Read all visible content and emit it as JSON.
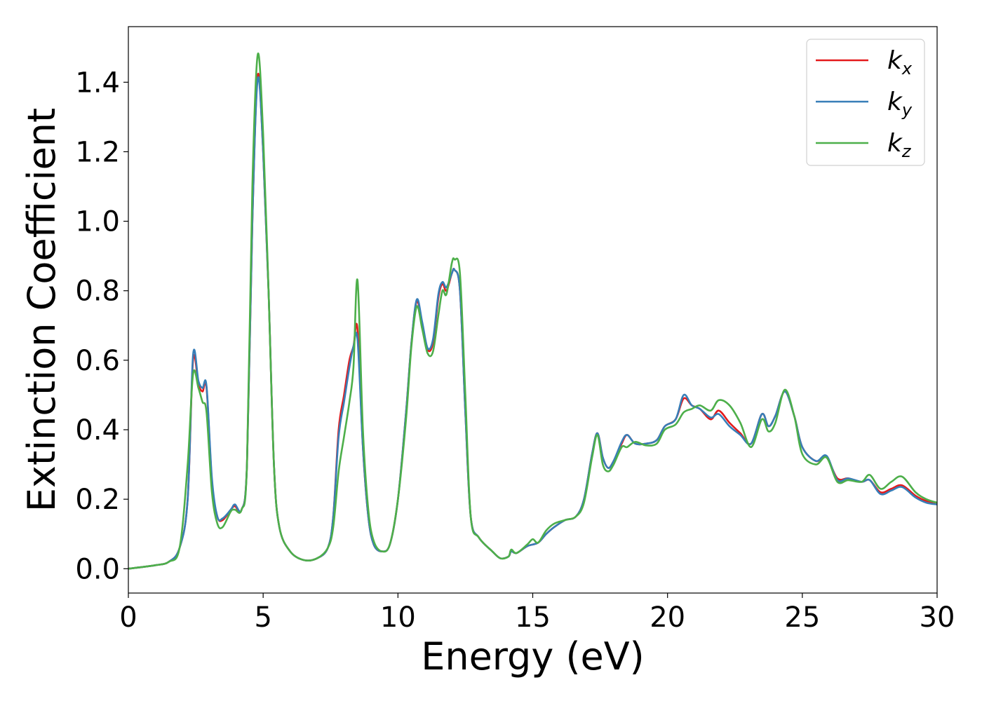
{
  "chart_data": {
    "type": "line",
    "title": "",
    "xlabel": "Energy (eV)",
    "ylabel": "Extinction Coefficient",
    "xlim": [
      0,
      30
    ],
    "ylim": [
      -0.07,
      1.56
    ],
    "xticks": [
      0,
      5,
      10,
      15,
      20,
      25,
      30
    ],
    "xtick_labels": [
      "0",
      "5",
      "10",
      "15",
      "20",
      "25",
      "30"
    ],
    "yticks": [
      0.0,
      0.2,
      0.4,
      0.6,
      0.8,
      1.0,
      1.2,
      1.4
    ],
    "ytick_labels": [
      "0.0",
      "0.2",
      "0.4",
      "0.6",
      "0.8",
      "1.0",
      "1.2",
      "1.4"
    ],
    "grid": false,
    "legend_position": "top-right",
    "series": [
      {
        "name": "k",
        "subscript": "x",
        "color": "#e41a1c",
        "points": [
          [
            0,
            0.0
          ],
          [
            1,
            0.01
          ],
          [
            1.5,
            0.02
          ],
          [
            1.9,
            0.06
          ],
          [
            2.2,
            0.2
          ],
          [
            2.4,
            0.6
          ],
          [
            2.6,
            0.53
          ],
          [
            2.75,
            0.51
          ],
          [
            2.9,
            0.52
          ],
          [
            3.1,
            0.25
          ],
          [
            3.3,
            0.15
          ],
          [
            3.5,
            0.14
          ],
          [
            3.8,
            0.17
          ],
          [
            3.95,
            0.18
          ],
          [
            4.2,
            0.17
          ],
          [
            4.4,
            0.3
          ],
          [
            4.6,
            1.0
          ],
          [
            4.8,
            1.42
          ],
          [
            5.0,
            1.2
          ],
          [
            5.2,
            0.8
          ],
          [
            5.4,
            0.3
          ],
          [
            5.6,
            0.12
          ],
          [
            6.0,
            0.05
          ],
          [
            6.5,
            0.025
          ],
          [
            7.0,
            0.03
          ],
          [
            7.4,
            0.06
          ],
          [
            7.6,
            0.15
          ],
          [
            7.8,
            0.4
          ],
          [
            8.0,
            0.5
          ],
          [
            8.2,
            0.6
          ],
          [
            8.35,
            0.64
          ],
          [
            8.5,
            0.69
          ],
          [
            8.7,
            0.35
          ],
          [
            8.9,
            0.15
          ],
          [
            9.1,
            0.07
          ],
          [
            9.4,
            0.05
          ],
          [
            9.7,
            0.07
          ],
          [
            10.0,
            0.2
          ],
          [
            10.3,
            0.45
          ],
          [
            10.5,
            0.65
          ],
          [
            10.7,
            0.77
          ],
          [
            10.9,
            0.7
          ],
          [
            11.1,
            0.63
          ],
          [
            11.3,
            0.65
          ],
          [
            11.5,
            0.78
          ],
          [
            11.65,
            0.82
          ],
          [
            11.8,
            0.8
          ],
          [
            12.0,
            0.85
          ],
          [
            12.1,
            0.86
          ],
          [
            12.3,
            0.8
          ],
          [
            12.5,
            0.45
          ],
          [
            12.7,
            0.15
          ],
          [
            13.0,
            0.09
          ],
          [
            13.5,
            0.05
          ],
          [
            13.8,
            0.03
          ],
          [
            14.1,
            0.035
          ],
          [
            14.2,
            0.05
          ],
          [
            14.4,
            0.045
          ],
          [
            14.8,
            0.065
          ],
          [
            15.2,
            0.075
          ],
          [
            15.5,
            0.1
          ],
          [
            15.8,
            0.12
          ],
          [
            16.2,
            0.14
          ],
          [
            16.6,
            0.15
          ],
          [
            16.9,
            0.2
          ],
          [
            17.2,
            0.33
          ],
          [
            17.4,
            0.39
          ],
          [
            17.6,
            0.32
          ],
          [
            17.8,
            0.29
          ],
          [
            18.0,
            0.31
          ],
          [
            18.3,
            0.36
          ],
          [
            18.5,
            0.385
          ],
          [
            18.8,
            0.36
          ],
          [
            19.2,
            0.36
          ],
          [
            19.6,
            0.37
          ],
          [
            19.9,
            0.41
          ],
          [
            20.3,
            0.43
          ],
          [
            20.6,
            0.49
          ],
          [
            20.9,
            0.47
          ],
          [
            21.2,
            0.46
          ],
          [
            21.6,
            0.43
          ],
          [
            21.9,
            0.455
          ],
          [
            22.3,
            0.42
          ],
          [
            22.7,
            0.39
          ],
          [
            23.1,
            0.36
          ],
          [
            23.5,
            0.445
          ],
          [
            23.75,
            0.41
          ],
          [
            24.0,
            0.44
          ],
          [
            24.35,
            0.51
          ],
          [
            24.7,
            0.44
          ],
          [
            25.0,
            0.35
          ],
          [
            25.5,
            0.31
          ],
          [
            25.9,
            0.32
          ],
          [
            26.3,
            0.26
          ],
          [
            26.7,
            0.26
          ],
          [
            27.2,
            0.25
          ],
          [
            27.5,
            0.255
          ],
          [
            27.9,
            0.22
          ],
          [
            28.3,
            0.23
          ],
          [
            28.7,
            0.24
          ],
          [
            29.2,
            0.21
          ],
          [
            29.6,
            0.195
          ],
          [
            30,
            0.19
          ]
        ]
      },
      {
        "name": "k",
        "subscript": "y",
        "color": "#377eb8",
        "points": [
          [
            0,
            0.0
          ],
          [
            1,
            0.01
          ],
          [
            1.5,
            0.02
          ],
          [
            1.9,
            0.06
          ],
          [
            2.2,
            0.2
          ],
          [
            2.4,
            0.615
          ],
          [
            2.6,
            0.54
          ],
          [
            2.75,
            0.52
          ],
          [
            2.9,
            0.525
          ],
          [
            3.1,
            0.26
          ],
          [
            3.3,
            0.15
          ],
          [
            3.5,
            0.145
          ],
          [
            3.8,
            0.17
          ],
          [
            3.95,
            0.185
          ],
          [
            4.2,
            0.17
          ],
          [
            4.4,
            0.3
          ],
          [
            4.6,
            1.0
          ],
          [
            4.8,
            1.41
          ],
          [
            5.0,
            1.2
          ],
          [
            5.2,
            0.8
          ],
          [
            5.4,
            0.3
          ],
          [
            5.6,
            0.12
          ],
          [
            6.0,
            0.05
          ],
          [
            6.5,
            0.025
          ],
          [
            7.0,
            0.03
          ],
          [
            7.4,
            0.06
          ],
          [
            7.6,
            0.15
          ],
          [
            7.8,
            0.38
          ],
          [
            8.0,
            0.48
          ],
          [
            8.2,
            0.58
          ],
          [
            8.35,
            0.64
          ],
          [
            8.5,
            0.66
          ],
          [
            8.7,
            0.35
          ],
          [
            8.9,
            0.15
          ],
          [
            9.1,
            0.07
          ],
          [
            9.4,
            0.05
          ],
          [
            9.7,
            0.07
          ],
          [
            10.0,
            0.2
          ],
          [
            10.3,
            0.45
          ],
          [
            10.5,
            0.65
          ],
          [
            10.7,
            0.775
          ],
          [
            10.9,
            0.71
          ],
          [
            11.1,
            0.635
          ],
          [
            11.3,
            0.66
          ],
          [
            11.5,
            0.79
          ],
          [
            11.65,
            0.825
          ],
          [
            11.8,
            0.81
          ],
          [
            12.0,
            0.85
          ],
          [
            12.1,
            0.86
          ],
          [
            12.3,
            0.8
          ],
          [
            12.5,
            0.45
          ],
          [
            12.7,
            0.15
          ],
          [
            13.0,
            0.09
          ],
          [
            13.5,
            0.05
          ],
          [
            13.8,
            0.03
          ],
          [
            14.1,
            0.035
          ],
          [
            14.2,
            0.05
          ],
          [
            14.4,
            0.045
          ],
          [
            14.8,
            0.065
          ],
          [
            15.2,
            0.075
          ],
          [
            15.5,
            0.1
          ],
          [
            15.8,
            0.12
          ],
          [
            16.2,
            0.14
          ],
          [
            16.6,
            0.15
          ],
          [
            16.9,
            0.2
          ],
          [
            17.2,
            0.33
          ],
          [
            17.4,
            0.39
          ],
          [
            17.6,
            0.32
          ],
          [
            17.8,
            0.29
          ],
          [
            18.0,
            0.31
          ],
          [
            18.3,
            0.365
          ],
          [
            18.5,
            0.385
          ],
          [
            18.8,
            0.36
          ],
          [
            19.2,
            0.36
          ],
          [
            19.6,
            0.37
          ],
          [
            19.9,
            0.41
          ],
          [
            20.3,
            0.43
          ],
          [
            20.6,
            0.5
          ],
          [
            20.9,
            0.47
          ],
          [
            21.2,
            0.46
          ],
          [
            21.6,
            0.435
          ],
          [
            21.9,
            0.445
          ],
          [
            22.3,
            0.41
          ],
          [
            22.7,
            0.385
          ],
          [
            23.1,
            0.36
          ],
          [
            23.5,
            0.445
          ],
          [
            23.75,
            0.41
          ],
          [
            24.0,
            0.44
          ],
          [
            24.35,
            0.51
          ],
          [
            24.7,
            0.44
          ],
          [
            25.0,
            0.35
          ],
          [
            25.5,
            0.31
          ],
          [
            25.9,
            0.325
          ],
          [
            26.3,
            0.255
          ],
          [
            26.7,
            0.26
          ],
          [
            27.2,
            0.25
          ],
          [
            27.5,
            0.255
          ],
          [
            27.9,
            0.215
          ],
          [
            28.3,
            0.225
          ],
          [
            28.7,
            0.235
          ],
          [
            29.2,
            0.205
          ],
          [
            29.6,
            0.19
          ],
          [
            30,
            0.185
          ]
        ]
      },
      {
        "name": "k",
        "subscript": "z",
        "color": "#4daf4a",
        "points": [
          [
            0,
            0.0
          ],
          [
            1,
            0.01
          ],
          [
            1.5,
            0.02
          ],
          [
            1.9,
            0.06
          ],
          [
            2.2,
            0.3
          ],
          [
            2.4,
            0.56
          ],
          [
            2.6,
            0.52
          ],
          [
            2.75,
            0.48
          ],
          [
            2.9,
            0.45
          ],
          [
            3.1,
            0.22
          ],
          [
            3.3,
            0.13
          ],
          [
            3.5,
            0.12
          ],
          [
            3.8,
            0.165
          ],
          [
            3.95,
            0.17
          ],
          [
            4.2,
            0.17
          ],
          [
            4.4,
            0.3
          ],
          [
            4.6,
            1.1
          ],
          [
            4.8,
            1.48
          ],
          [
            5.0,
            1.25
          ],
          [
            5.2,
            0.8
          ],
          [
            5.4,
            0.3
          ],
          [
            5.6,
            0.12
          ],
          [
            6.0,
            0.05
          ],
          [
            6.5,
            0.025
          ],
          [
            7.0,
            0.03
          ],
          [
            7.4,
            0.06
          ],
          [
            7.6,
            0.12
          ],
          [
            7.8,
            0.28
          ],
          [
            8.0,
            0.38
          ],
          [
            8.2,
            0.48
          ],
          [
            8.35,
            0.58
          ],
          [
            8.5,
            0.83
          ],
          [
            8.7,
            0.4
          ],
          [
            8.9,
            0.17
          ],
          [
            9.1,
            0.08
          ],
          [
            9.4,
            0.05
          ],
          [
            9.7,
            0.07
          ],
          [
            10.0,
            0.2
          ],
          [
            10.3,
            0.43
          ],
          [
            10.5,
            0.64
          ],
          [
            10.7,
            0.755
          ],
          [
            10.9,
            0.69
          ],
          [
            11.1,
            0.62
          ],
          [
            11.3,
            0.625
          ],
          [
            11.5,
            0.73
          ],
          [
            11.65,
            0.8
          ],
          [
            11.8,
            0.79
          ],
          [
            12.0,
            0.88
          ],
          [
            12.1,
            0.89
          ],
          [
            12.3,
            0.85
          ],
          [
            12.5,
            0.5
          ],
          [
            12.7,
            0.15
          ],
          [
            13.0,
            0.09
          ],
          [
            13.5,
            0.05
          ],
          [
            13.8,
            0.03
          ],
          [
            14.1,
            0.035
          ],
          [
            14.2,
            0.055
          ],
          [
            14.4,
            0.045
          ],
          [
            14.8,
            0.07
          ],
          [
            15.0,
            0.085
          ],
          [
            15.2,
            0.075
          ],
          [
            15.5,
            0.11
          ],
          [
            15.8,
            0.13
          ],
          [
            16.2,
            0.14
          ],
          [
            16.6,
            0.15
          ],
          [
            16.9,
            0.19
          ],
          [
            17.2,
            0.32
          ],
          [
            17.4,
            0.385
          ],
          [
            17.6,
            0.3
          ],
          [
            17.8,
            0.28
          ],
          [
            18.0,
            0.3
          ],
          [
            18.3,
            0.35
          ],
          [
            18.5,
            0.35
          ],
          [
            18.8,
            0.365
          ],
          [
            19.2,
            0.355
          ],
          [
            19.6,
            0.36
          ],
          [
            19.9,
            0.4
          ],
          [
            20.3,
            0.415
          ],
          [
            20.6,
            0.45
          ],
          [
            20.9,
            0.46
          ],
          [
            21.2,
            0.47
          ],
          [
            21.6,
            0.455
          ],
          [
            21.9,
            0.485
          ],
          [
            22.3,
            0.47
          ],
          [
            22.7,
            0.42
          ],
          [
            23.1,
            0.35
          ],
          [
            23.5,
            0.43
          ],
          [
            23.75,
            0.395
          ],
          [
            24.0,
            0.42
          ],
          [
            24.35,
            0.515
          ],
          [
            24.7,
            0.44
          ],
          [
            25.0,
            0.33
          ],
          [
            25.5,
            0.3
          ],
          [
            25.9,
            0.32
          ],
          [
            26.3,
            0.25
          ],
          [
            26.7,
            0.255
          ],
          [
            27.2,
            0.25
          ],
          [
            27.5,
            0.27
          ],
          [
            27.9,
            0.23
          ],
          [
            28.3,
            0.25
          ],
          [
            28.7,
            0.265
          ],
          [
            29.2,
            0.22
          ],
          [
            29.6,
            0.2
          ],
          [
            30,
            0.19
          ]
        ]
      }
    ]
  }
}
